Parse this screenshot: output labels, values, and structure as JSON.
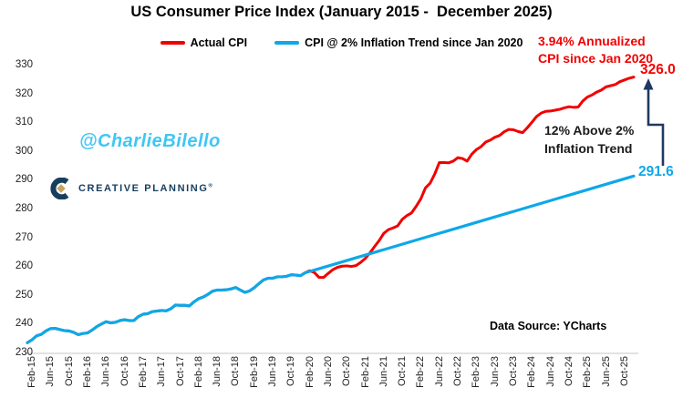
{
  "title": "US Consumer Price Index (January 2015 -  December 2025)",
  "legend": {
    "items": [
      {
        "label": "Actual CPI",
        "color": "#F20000"
      },
      {
        "label": "CPI @ 2% Inflation Trend since Jan 2020",
        "color": "#0DA8E8"
      }
    ]
  },
  "annotations": {
    "annualized_line1": "3.94% Annualized",
    "annualized_line2": "CPI since Jan 2020",
    "above_trend_line1": "12% Above 2%",
    "above_trend_line2": "Inflation Trend",
    "actual_end_label": "326.0",
    "trend_end_label": "291.6",
    "data_source": "Data Source: YCharts",
    "watermark": "@CharlieBilello",
    "logo_text": "CREATIVE PLANNING",
    "logo_reg_mark": "®"
  },
  "colors": {
    "actual_line": "#F20000",
    "trend_line": "#0DA8E8",
    "arrow_navy": "#1F3864",
    "axis_line": "#D9D9D9",
    "watermark_cyan": "#3FC6F4",
    "logo_navy": "#163F5F",
    "logo_gold": "#C7A35F"
  },
  "chart_data": {
    "type": "line",
    "title": "US Consumer Price Index (January 2015 -  December 2025)",
    "x_unit": "month",
    "x_range": [
      "Jan-15",
      "Dec-25"
    ],
    "first_tick_month_index": 1,
    "x_tick_step_months": 4,
    "x_tick_labels": [
      "Feb-15",
      "Jun-15",
      "Oct-15",
      "Feb-16",
      "Jun-16",
      "Oct-16",
      "Feb-17",
      "Jun-17",
      "Oct-17",
      "Feb-18",
      "Jun-18",
      "Oct-18",
      "Feb-19",
      "Jun-19",
      "Oct-19",
      "Feb-20",
      "Jun-20",
      "Oct-20",
      "Feb-21",
      "Jun-21",
      "Oct-21",
      "Feb-22",
      "Jun-22",
      "Oct-22",
      "Feb-23",
      "Jun-23",
      "Oct-23",
      "Feb-24",
      "Jun-24",
      "Oct-24",
      "Feb-25",
      "Jun-25",
      "Oct-25"
    ],
    "ylim": [
      230,
      330
    ],
    "y_ticks": [
      230,
      240,
      250,
      260,
      270,
      280,
      290,
      300,
      310,
      320,
      330
    ],
    "grid": false,
    "legend_position": "top",
    "series": [
      {
        "name": "Actual CPI",
        "color": "#F20000",
        "end_label": "326.0",
        "values": [
          233.7,
          234.7,
          236.1,
          236.6,
          237.8,
          238.6,
          238.7,
          238.3,
          237.9,
          237.8,
          237.3,
          236.5,
          236.9,
          237.1,
          238.1,
          239.3,
          240.2,
          241.0,
          240.6,
          240.8,
          241.4,
          241.7,
          241.4,
          241.4,
          242.8,
          243.6,
          243.8,
          244.5,
          244.7,
          244.9,
          244.8,
          245.5,
          246.8,
          246.7,
          246.7,
          246.5,
          247.9,
          249.0,
          249.6,
          250.5,
          251.6,
          252.0,
          252.0,
          252.1,
          252.4,
          252.9,
          252.0,
          251.2,
          251.7,
          252.8,
          254.2,
          255.5,
          256.1,
          256.1,
          256.6,
          256.6,
          256.8,
          257.3,
          257.2,
          257.0,
          258.0,
          258.7,
          258.1,
          256.4,
          256.4,
          257.8,
          259.1,
          259.9,
          260.3,
          260.4,
          260.2,
          260.5,
          261.6,
          263.0,
          264.9,
          267.1,
          269.2,
          271.7,
          273.0,
          273.6,
          274.3,
          276.6,
          277.9,
          278.8,
          281.1,
          283.7,
          287.5,
          289.1,
          292.3,
          296.3,
          296.3,
          296.2,
          296.8,
          298.0,
          297.7,
          296.8,
          299.2,
          300.8,
          301.8,
          303.4,
          304.1,
          305.1,
          305.7,
          307.0,
          307.8,
          307.7,
          307.1,
          306.7,
          308.4,
          310.3,
          312.3,
          313.5,
          314.1,
          314.2,
          314.5,
          314.8,
          315.3,
          315.7,
          315.5,
          315.6,
          317.7,
          319.1,
          319.8,
          320.8,
          321.5,
          322.6,
          323.0,
          323.4,
          324.4,
          325.0,
          325.6,
          326.0
        ]
      },
      {
        "name": "CPI @ 2% Inflation Trend since Jan 2020",
        "color": "#0DA8E8",
        "end_label": "291.6",
        "definition": {
          "overlay_actual_until_index": 60,
          "trend_start_index": 60,
          "trend_start_value": 258.0,
          "trend_end_index": 131,
          "trend_end_value": 291.6
        }
      }
    ]
  }
}
